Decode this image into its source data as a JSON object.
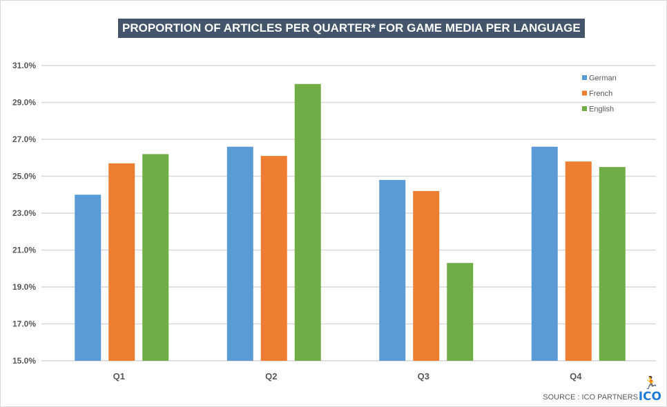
{
  "chart_data": {
    "type": "bar",
    "title": "PROPORTION OF ARTICLES PER QUARTER* FOR GAME MEDIA PER LANGUAGE",
    "categories": [
      "Q1",
      "Q2",
      "Q3",
      "Q4"
    ],
    "series": [
      {
        "name": "German",
        "color": "#5b9bd5",
        "values": [
          24.0,
          26.6,
          24.8,
          26.6
        ]
      },
      {
        "name": "French",
        "color": "#ed7d31",
        "values": [
          25.7,
          26.1,
          24.2,
          25.8
        ]
      },
      {
        "name": "English",
        "color": "#70ad47",
        "values": [
          26.2,
          30.0,
          20.3,
          25.5
        ]
      }
    ],
    "ylim": [
      15,
      31
    ],
    "yticks": [
      "15.0%",
      "17.0%",
      "19.0%",
      "21.0%",
      "23.0%",
      "25.0%",
      "27.0%",
      "29.0%",
      "31.0%"
    ],
    "grid": true,
    "legend": "top-right",
    "xlabel": "",
    "ylabel": ""
  },
  "source": "SOURCE : ICO PARTNERS",
  "logo": "ICO"
}
